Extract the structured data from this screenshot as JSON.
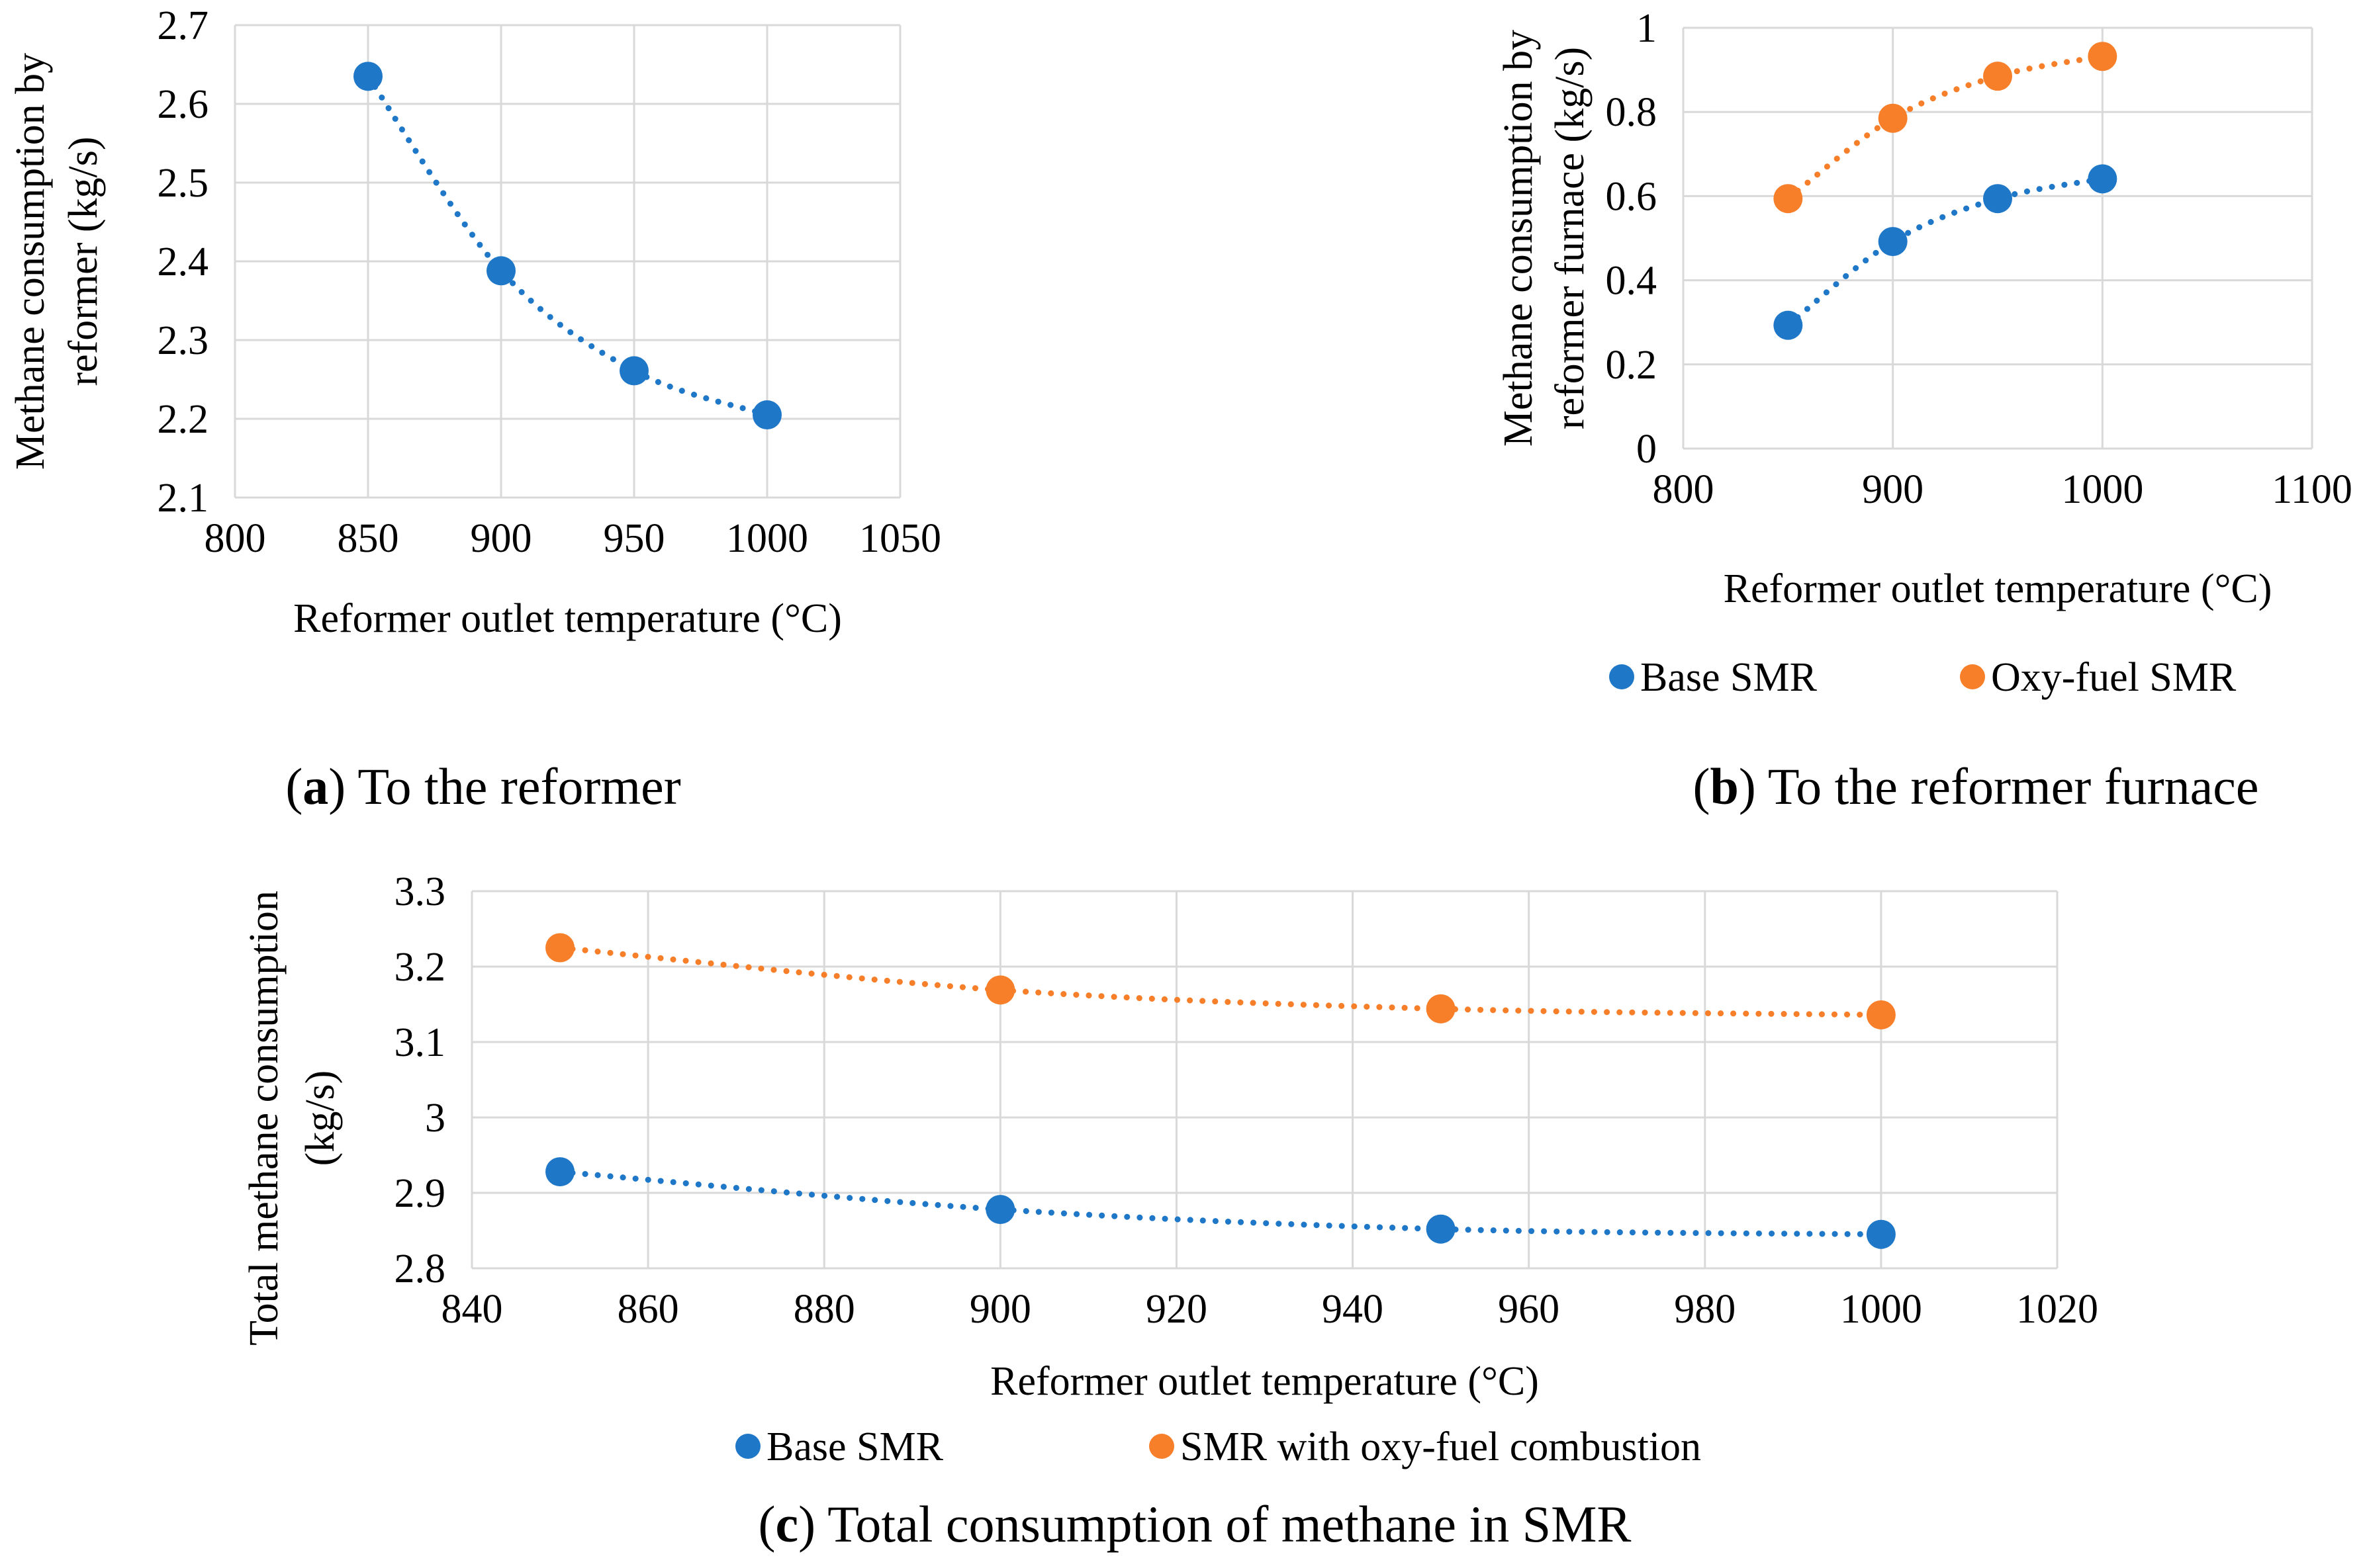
{
  "colors": {
    "base": "#1f77c8",
    "oxy": "#f77f2a",
    "grid": "#d9d9d9"
  },
  "charts": [
    {
      "id": "a",
      "caption_letter": "a",
      "caption_text": ") To the reformer",
      "chart_data": {
        "type": "scatter",
        "title": "",
        "xlabel": "Reformer outlet temperature (°C)",
        "ylabel_lines": [
          "Methane consumption by",
          "reformer (kg/s)"
        ],
        "xlim": [
          800,
          1050
        ],
        "xstep": 50,
        "ylim": [
          2.1,
          2.7
        ],
        "ystep": 0.1,
        "x_ticks": [
          "800",
          "850",
          "900",
          "950",
          "1000",
          "1050"
        ],
        "y_ticks": [
          "2.1",
          "2.2",
          "2.3",
          "2.4",
          "2.5",
          "2.6",
          "2.7"
        ],
        "grid": "vertical and horizontal",
        "legend": null,
        "series": [
          {
            "name": "",
            "color_key": "base",
            "x": [
              850,
              900,
              950,
              1000
            ],
            "y": [
              2.635,
              2.388,
              2.261,
              2.205
            ]
          }
        ]
      }
    },
    {
      "id": "b",
      "caption_letter": "b",
      "caption_text": ") To the reformer furnace",
      "chart_data": {
        "type": "scatter",
        "title": "",
        "xlabel": "Reformer outlet temperature (°C)",
        "ylabel_lines": [
          "Methane consumption by",
          "reformer furnace  (kg/s)"
        ],
        "xlim": [
          800,
          1100
        ],
        "xstep": 100,
        "ylim": [
          0,
          1
        ],
        "ystep": 0.2,
        "x_ticks": [
          "800",
          "900",
          "1000",
          "1100"
        ],
        "y_ticks": [
          "0",
          "0.2",
          "0.4",
          "0.6",
          "0.8",
          "1"
        ],
        "grid": "vertical and horizontal",
        "legend": "bottom",
        "series": [
          {
            "name": "Base SMR",
            "color_key": "base",
            "x": [
              850,
              900,
              950,
              1000
            ],
            "y": [
              0.293,
              0.492,
              0.594,
              0.641
            ]
          },
          {
            "name": "Oxy-fuel SMR",
            "color_key": "oxy",
            "x": [
              850,
              900,
              950,
              1000
            ],
            "y": [
              0.594,
              0.785,
              0.885,
              0.932
            ]
          }
        ]
      }
    },
    {
      "id": "c",
      "caption_letter": "c",
      "caption_text": ") Total consumption of methane in SMR",
      "chart_data": {
        "type": "scatter",
        "title": "",
        "xlabel": "Reformer outlet temperature (°C)",
        "ylabel_lines": [
          "Total methane consumption",
          "(kg/s)"
        ],
        "xlim": [
          840,
          1020
        ],
        "xstep": 20,
        "ylim": [
          2.8,
          3.3
        ],
        "ystep": 0.1,
        "x_ticks": [
          "840",
          "860",
          "880",
          "900",
          "920",
          "940",
          "960",
          "980",
          "1000",
          "1020"
        ],
        "y_ticks": [
          "2.8",
          "2.9",
          "3",
          "3.1",
          "3.2",
          "3.3"
        ],
        "grid": "vertical and horizontal",
        "legend": "bottom",
        "series": [
          {
            "name": "Base SMR",
            "color_key": "base",
            "x": [
              850,
              900,
              950,
              1000
            ],
            "y": [
              2.928,
              2.878,
              2.852,
              2.845
            ]
          },
          {
            "name": "SMR with oxy-fuel combustion",
            "color_key": "oxy",
            "x": [
              850,
              900,
              950,
              1000
            ],
            "y": [
              3.225,
              3.169,
              3.144,
              3.136
            ]
          }
        ]
      }
    }
  ]
}
